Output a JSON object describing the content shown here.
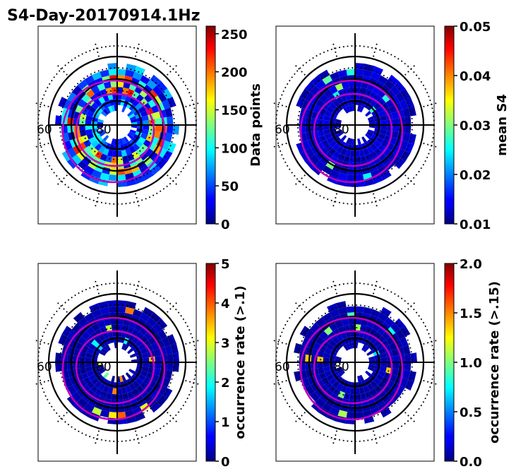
{
  "figure": {
    "title": "S4-Day-20170914.1Hz"
  },
  "colors": {
    "oval": "#c000c0",
    "axes": "#000000",
    "background": "#ffffff"
  },
  "chart_data": [
    {
      "id": "data_points",
      "type": "heatmap",
      "projection": "polar",
      "title": "",
      "colorbar": {
        "label": "Data points",
        "vmin": 0,
        "vmax": 260,
        "ticks": [
          "0",
          "50",
          "100",
          "150",
          "200",
          "250"
        ],
        "tick_values": [
          0,
          50,
          100,
          150,
          200,
          250
        ],
        "cmap": "jet"
      },
      "lat_labels": [
        "60",
        "80"
      ],
      "field": "points"
    },
    {
      "id": "mean_s4",
      "type": "heatmap",
      "projection": "polar",
      "title": "",
      "colorbar": {
        "label": "mean S4",
        "vmin": 0.01,
        "vmax": 0.05,
        "ticks": [
          "0.01",
          "0.02",
          "0.03",
          "0.04",
          "0.05"
        ],
        "tick_values": [
          0.01,
          0.02,
          0.03,
          0.04,
          0.05
        ],
        "cmap": "jet"
      },
      "lat_labels": [
        "60",
        "80"
      ],
      "field": "s4"
    },
    {
      "id": "occ_rate_01",
      "type": "heatmap",
      "projection": "polar",
      "title": "",
      "colorbar": {
        "label": "occurrence rate (>.1)",
        "vmin": 0,
        "vmax": 5,
        "ticks": [
          "0",
          "1",
          "2",
          "3",
          "4",
          "5"
        ],
        "tick_values": [
          0,
          1,
          2,
          3,
          4,
          5
        ],
        "cmap": "jet"
      },
      "lat_labels": [
        "60",
        "80"
      ],
      "field": "occ1"
    },
    {
      "id": "occ_rate_015",
      "type": "heatmap",
      "projection": "polar",
      "title": "",
      "colorbar": {
        "label": "occurrence rate (>.15)",
        "vmin": 0.0,
        "vmax": 2.0,
        "ticks": [
          "0.0",
          "0.5",
          "1.0",
          "1.5",
          "2.0"
        ],
        "tick_values": [
          0.0,
          0.5,
          1.0,
          1.5,
          2.0
        ],
        "cmap": "jet"
      },
      "lat_labels": [
        "60",
        "80"
      ],
      "field": "occ2"
    }
  ]
}
